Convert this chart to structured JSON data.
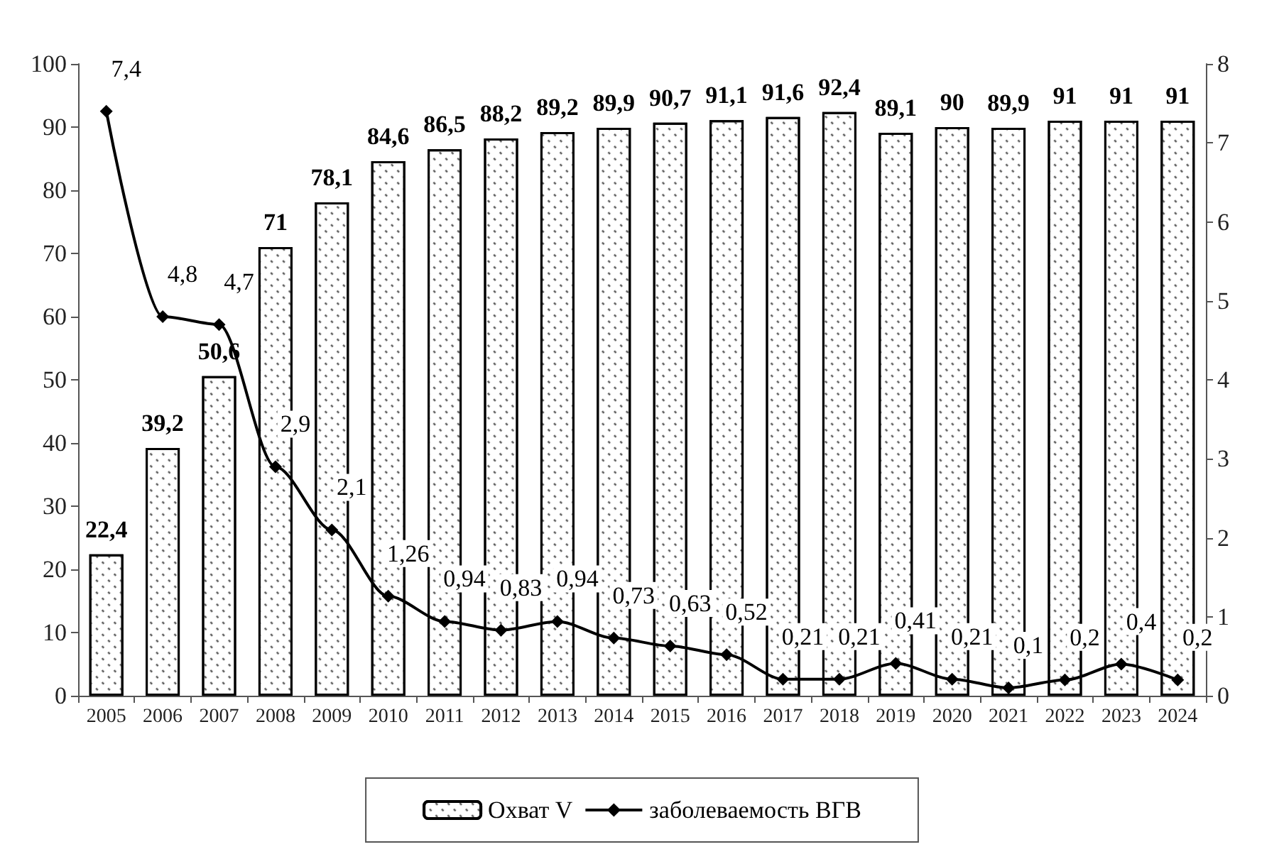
{
  "chart_data": {
    "type": "bar",
    "categories": [
      "2005",
      "2006",
      "2007",
      "2008",
      "2009",
      "2010",
      "2011",
      "2012",
      "2013",
      "2014",
      "2015",
      "2016",
      "2017",
      "2018",
      "2019",
      "2020",
      "2021",
      "2022",
      "2023",
      "2024"
    ],
    "series": [
      {
        "name": "Охват V",
        "color": "#ffffff",
        "values": [
          22.4,
          39.2,
          50.6,
          71,
          78.1,
          84.6,
          86.5,
          88.2,
          89.2,
          89.9,
          90.7,
          91.1,
          91.6,
          92.4,
          89.1,
          90,
          89.9,
          91,
          91,
          91
        ],
        "value_labels": [
          "22,4",
          "39,2",
          "50,6",
          "71",
          "78,1",
          "84,6",
          "86,5",
          "88,2",
          "89,2",
          "89,9",
          "90,7",
          "91,1",
          "91,6",
          "92,4",
          "89,1",
          "90",
          "89,9",
          "91",
          "91",
          "91"
        ]
      },
      {
        "name": "заболеваемость ВГВ",
        "type": "line",
        "axis": "y2",
        "color": "#000000",
        "marker": "diamond",
        "values": [
          7.4,
          4.8,
          4.7,
          2.9,
          2.1,
          1.26,
          0.94,
          0.83,
          0.94,
          0.73,
          0.63,
          0.52,
          0.21,
          0.21,
          0.41,
          0.21,
          0.1,
          0.2,
          0.4,
          0.2
        ],
        "value_labels": [
          "7,4",
          "4,8",
          "4,7",
          "2,9",
          "2,1",
          "1,26",
          "0,94",
          "0,83",
          "0,94",
          "0,73",
          "0,63",
          "0,52",
          "0,21",
          "0,21",
          "0,41",
          "0,21",
          "0,1",
          "0,2",
          "0,4",
          "0,2"
        ]
      }
    ],
    "ylim": [
      0,
      100
    ],
    "yticks": [
      0,
      10,
      20,
      30,
      40,
      50,
      60,
      70,
      80,
      90,
      100
    ],
    "y2lim": [
      0,
      8
    ],
    "y2ticks": [
      0,
      1,
      2,
      3,
      4,
      5,
      6,
      7,
      8
    ],
    "grid": false,
    "legend": "bottom"
  }
}
